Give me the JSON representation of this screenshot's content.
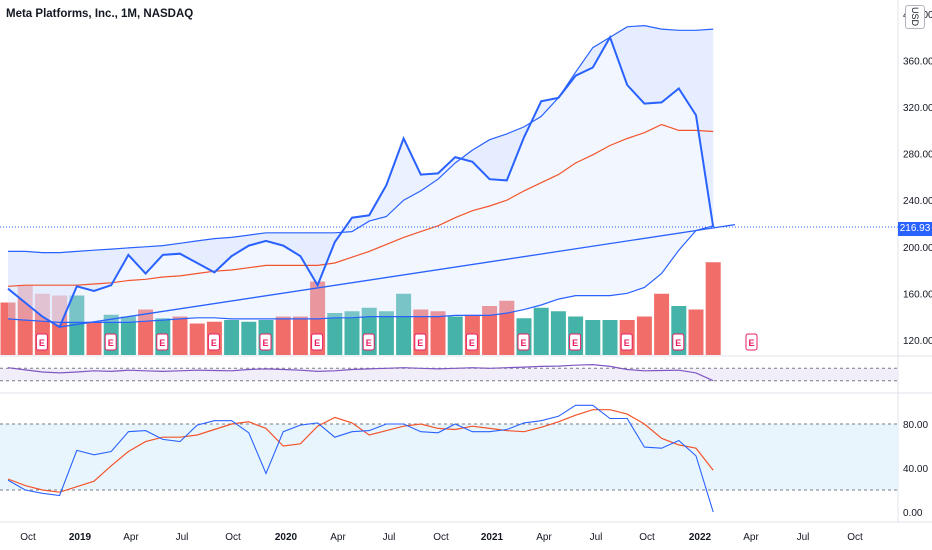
{
  "title": "Meta Platforms, Inc., 1M, NASDAQ",
  "currency": "USD",
  "last_price": "216.93",
  "colors": {
    "price_line": "#2962ff",
    "band_line": "#2962ff",
    "band_fill": "#dbe5ff",
    "ma_line": "#f2552c",
    "vol_up": "#26a69a",
    "vol_down": "#ef5350",
    "stoch_k": "#2962ff",
    "stoch_d": "#f2552c",
    "stoch_band": "#e3f2fd",
    "osc_band": "#ede7f6",
    "earnings": "#e91e63"
  },
  "chart_data": {
    "type": "line",
    "months": [
      "2018-09",
      "2018-10",
      "2018-11",
      "2018-12",
      "2019-01",
      "2019-02",
      "2019-03",
      "2019-04",
      "2019-05",
      "2019-06",
      "2019-07",
      "2019-08",
      "2019-09",
      "2019-10",
      "2019-11",
      "2019-12",
      "2020-01",
      "2020-02",
      "2020-03",
      "2020-04",
      "2020-05",
      "2020-06",
      "2020-07",
      "2020-08",
      "2020-09",
      "2020-10",
      "2020-11",
      "2020-12",
      "2021-01",
      "2021-02",
      "2021-03",
      "2021-04",
      "2021-05",
      "2021-06",
      "2021-07",
      "2021-08",
      "2021-09",
      "2021-10",
      "2021-11",
      "2021-12",
      "2022-01",
      "2022-02"
    ],
    "x_ticks": [
      "Oct",
      "2019",
      "Apr",
      "Jul",
      "Oct",
      "2020",
      "Apr",
      "Jul",
      "Oct",
      "2021",
      "Apr",
      "Jul",
      "Oct",
      "2022",
      "Apr",
      "Jul",
      "Oct"
    ],
    "y_ticks": [
      "400.00",
      "360.00",
      "320.00",
      "280.00",
      "240.00",
      "200.00",
      "160.00",
      "120.00"
    ],
    "ylim": [
      107,
      412
    ],
    "series": [
      {
        "role": "price",
        "values": [
          164,
          152,
          140,
          131,
          166,
          162,
          167,
          193,
          177,
          193,
          194,
          186,
          178,
          192,
          201,
          205,
          201,
          192,
          167,
          204,
          225,
          227,
          253,
          293,
          262,
          263,
          277,
          273,
          258,
          257,
          294,
          325,
          328,
          347,
          354,
          380,
          339,
          323,
          324,
          336,
          313,
          217
        ]
      },
      {
        "role": "upper_band",
        "values": [
          196,
          196,
          195,
          195,
          196,
          197,
          198,
          199,
          200,
          201,
          203,
          205,
          207,
          208,
          210,
          212,
          212,
          212,
          212,
          212,
          213,
          222,
          226,
          240,
          248,
          258,
          272,
          283,
          292,
          297,
          303,
          312,
          328,
          350,
          371,
          380,
          389,
          390,
          387,
          386,
          386,
          387
        ]
      },
      {
        "role": "moving_average",
        "values": [
          166,
          167,
          167,
          167,
          167,
          168,
          169,
          171,
          172,
          174,
          175,
          177,
          179,
          180,
          182,
          184,
          184,
          184,
          184,
          186,
          191,
          196,
          202,
          208,
          213,
          218,
          225,
          231,
          235,
          240,
          248,
          255,
          262,
          272,
          279,
          287,
          293,
          298,
          305,
          300,
          300,
          299
        ]
      },
      {
        "role": "lower_band",
        "values": [
          138,
          137,
          136,
          135,
          135,
          135,
          135,
          135,
          136,
          137,
          138,
          139,
          139,
          138,
          138,
          138,
          138,
          138,
          138,
          139,
          139,
          140,
          140,
          140,
          140,
          140,
          141,
          141,
          141,
          143,
          146,
          150,
          155,
          158,
          158,
          158,
          160,
          165,
          177,
          197,
          214,
          218
        ]
      },
      {
        "role": "trendline",
        "values": [
          131,
          218
        ]
      }
    ],
    "volume": {
      "values": [
        30,
        40,
        35,
        34,
        34,
        19,
        23,
        22,
        26,
        21,
        22,
        18,
        19,
        20,
        19,
        20,
        22,
        22,
        42,
        24,
        25,
        27,
        25,
        35,
        26,
        25,
        22,
        23,
        28,
        31,
        21,
        27,
        25,
        22,
        20,
        20,
        20,
        22,
        35,
        28,
        26,
        53
      ],
      "up": [
        false,
        false,
        false,
        false,
        true,
        false,
        true,
        true,
        false,
        true,
        false,
        false,
        false,
        true,
        true,
        true,
        false,
        false,
        false,
        true,
        true,
        true,
        true,
        true,
        false,
        false,
        true,
        false,
        false,
        false,
        true,
        true,
        true,
        true,
        true,
        true,
        false,
        false,
        false,
        true,
        false,
        false
      ],
      "ymax": 60
    },
    "earnings_markers": 13,
    "stochastic": {
      "k": [
        29,
        20,
        17,
        15,
        56,
        52,
        55,
        73,
        74,
        66,
        64,
        79,
        83,
        83,
        72,
        35,
        73,
        79,
        81,
        68,
        73,
        74,
        80,
        80,
        73,
        72,
        80,
        73,
        73,
        75,
        81,
        83,
        87,
        97,
        97,
        85,
        85,
        59,
        58,
        65,
        51,
        0
      ],
      "d": [
        30,
        24,
        20,
        18,
        23,
        28,
        42,
        55,
        64,
        68,
        68,
        70,
        75,
        80,
        82,
        76,
        60,
        62,
        78,
        86,
        81,
        70,
        74,
        78,
        80,
        76,
        75,
        78,
        76,
        74,
        73,
        77,
        82,
        88,
        93,
        93,
        89,
        80,
        67,
        61,
        58,
        38
      ],
      "upper_level": 80,
      "lower_level": 20,
      "y_ticks": [
        "80.00",
        "40.00",
        "0.00"
      ]
    },
    "oscillator": {
      "values": [
        72,
        65,
        58,
        55,
        58,
        62,
        60,
        64,
        62,
        60,
        62,
        64,
        63,
        62,
        66,
        68,
        66,
        64,
        60,
        62,
        66,
        68,
        70,
        72,
        70,
        68,
        70,
        72,
        70,
        72,
        74,
        76,
        77,
        80,
        82,
        76,
        66,
        62,
        63,
        64,
        55,
        30
      ],
      "upper_level": 70,
      "lower_level": 30
    }
  }
}
